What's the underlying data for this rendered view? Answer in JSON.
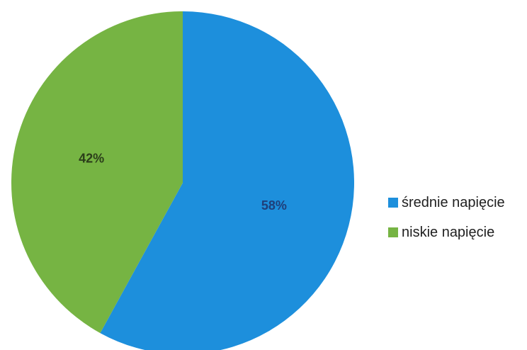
{
  "chart_data": {
    "type": "pie",
    "categories": [
      "średnie napięcie",
      "niskie napięcie"
    ],
    "values": [
      58,
      42
    ],
    "value_labels": [
      "58%",
      "42%"
    ],
    "colors": [
      "#1d8fdc",
      "#76b443"
    ],
    "label_colors": [
      "#1f3f7a",
      "#2b3d1a"
    ],
    "legend_placement": "right",
    "start_angle_deg": 0,
    "direction": "clockwise"
  }
}
